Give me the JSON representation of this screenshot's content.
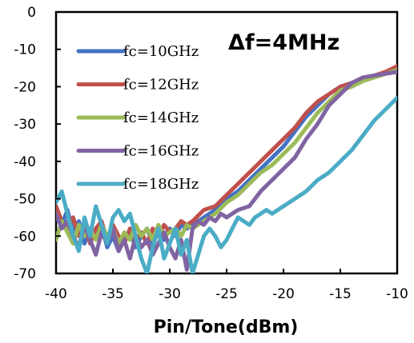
{
  "chart_data": {
    "type": "line",
    "title": "",
    "xlabel": "Pin/Tone(dBm)",
    "ylabel": "",
    "annotation": "Δf=4MHz",
    "xlim": [
      -40,
      -10
    ],
    "ylim": [
      -70,
      0
    ],
    "xticks": [
      -40,
      -35,
      -30,
      -25,
      -20,
      -15,
      -10
    ],
    "yticks": [
      0,
      -10,
      -20,
      -30,
      -40,
      -50,
      -60,
      -70
    ],
    "xtick_labels": [
      "-40",
      "-35",
      "-30",
      "-25",
      "-20",
      "-15",
      "-10"
    ],
    "ytick_labels": [
      "0",
      "-10",
      "-20",
      "-30",
      "-40",
      "-50",
      "-60",
      "-70"
    ],
    "grid": false,
    "legend_position": "top-left",
    "series": [
      {
        "name": "fc=10GHz",
        "color": "#4472c4",
        "points": [
          [
            -40,
            -55
          ],
          [
            -39.5,
            -57
          ],
          [
            -39,
            -53
          ],
          [
            -38.5,
            -59
          ],
          [
            -38,
            -56
          ],
          [
            -37.5,
            -62
          ],
          [
            -37,
            -58
          ],
          [
            -36.5,
            -60
          ],
          [
            -36,
            -57
          ],
          [
            -35.5,
            -63
          ],
          [
            -35,
            -60
          ],
          [
            -34.5,
            -64
          ],
          [
            -34,
            -61
          ],
          [
            -33.5,
            -59
          ],
          [
            -33,
            -63
          ],
          [
            -32.5,
            -60
          ],
          [
            -32,
            -58
          ],
          [
            -31.5,
            -62
          ],
          [
            -31,
            -59
          ],
          [
            -30.5,
            -61
          ],
          [
            -30,
            -58
          ],
          [
            -29.5,
            -60
          ],
          [
            -29,
            -57
          ],
          [
            -28.5,
            -58
          ],
          [
            -28,
            -57
          ],
          [
            -27,
            -55
          ],
          [
            -26,
            -53
          ],
          [
            -25,
            -50
          ],
          [
            -24,
            -48
          ],
          [
            -23,
            -45
          ],
          [
            -22,
            -42
          ],
          [
            -21,
            -39
          ],
          [
            -20,
            -36
          ],
          [
            -19,
            -32
          ],
          [
            -18,
            -28
          ],
          [
            -17,
            -25
          ],
          [
            -16,
            -22
          ],
          [
            -15,
            -20
          ],
          [
            -14,
            -19
          ],
          [
            -13,
            -18
          ],
          [
            -12,
            -17.5
          ],
          [
            -11,
            -16.5
          ],
          [
            -10,
            -16
          ]
        ]
      },
      {
        "name": "fc=12GHz",
        "color": "#c0504d",
        "points": [
          [
            -40,
            -52
          ],
          [
            -39.5,
            -56
          ],
          [
            -39,
            -58
          ],
          [
            -38.5,
            -55
          ],
          [
            -38,
            -60
          ],
          [
            -37.5,
            -57
          ],
          [
            -37,
            -62
          ],
          [
            -36.5,
            -58
          ],
          [
            -36,
            -56
          ],
          [
            -35.5,
            -61
          ],
          [
            -35,
            -57
          ],
          [
            -34.5,
            -60
          ],
          [
            -34,
            -62
          ],
          [
            -33.5,
            -58
          ],
          [
            -33,
            -61
          ],
          [
            -32.5,
            -59
          ],
          [
            -32,
            -62
          ],
          [
            -31.5,
            -58
          ],
          [
            -31,
            -60
          ],
          [
            -30.5,
            -57
          ],
          [
            -30,
            -59
          ],
          [
            -29.5,
            -58
          ],
          [
            -29,
            -56
          ],
          [
            -28.5,
            -57
          ],
          [
            -28,
            -56
          ],
          [
            -27,
            -53
          ],
          [
            -26,
            -52
          ],
          [
            -25,
            -49
          ],
          [
            -24,
            -46
          ],
          [
            -23,
            -43
          ],
          [
            -22,
            -40
          ],
          [
            -21,
            -37
          ],
          [
            -20,
            -34
          ],
          [
            -19,
            -31
          ],
          [
            -18,
            -27
          ],
          [
            -17,
            -24
          ],
          [
            -16,
            -22
          ],
          [
            -15,
            -20
          ],
          [
            -14,
            -19
          ],
          [
            -13,
            -18
          ],
          [
            -12,
            -17
          ],
          [
            -11,
            -16
          ],
          [
            -10,
            -14.5
          ]
        ]
      },
      {
        "name": "fc=14GHz",
        "color": "#9bbb59",
        "points": [
          [
            -40,
            -61
          ],
          [
            -39.5,
            -56
          ],
          [
            -39,
            -59
          ],
          [
            -38.5,
            -62
          ],
          [
            -38,
            -57
          ],
          [
            -37.5,
            -60
          ],
          [
            -37,
            -58
          ],
          [
            -36.5,
            -61
          ],
          [
            -36,
            -57
          ],
          [
            -35.5,
            -60
          ],
          [
            -35,
            -58
          ],
          [
            -34.5,
            -62
          ],
          [
            -34,
            -59
          ],
          [
            -33.5,
            -61
          ],
          [
            -33,
            -57
          ],
          [
            -32.5,
            -60
          ],
          [
            -32,
            -58
          ],
          [
            -31.5,
            -61
          ],
          [
            -31,
            -57
          ],
          [
            -30.5,
            -60
          ],
          [
            -30,
            -59
          ],
          [
            -29.5,
            -58
          ],
          [
            -29,
            -60
          ],
          [
            -28.5,
            -57
          ],
          [
            -28,
            -58
          ],
          [
            -27,
            -56
          ],
          [
            -26,
            -54
          ],
          [
            -25,
            -51
          ],
          [
            -24,
            -49
          ],
          [
            -23,
            -46
          ],
          [
            -22,
            -43
          ],
          [
            -21,
            -41
          ],
          [
            -20,
            -38
          ],
          [
            -19,
            -35
          ],
          [
            -18,
            -31
          ],
          [
            -17,
            -27
          ],
          [
            -16,
            -24
          ],
          [
            -15,
            -21
          ],
          [
            -14,
            -20
          ],
          [
            -13,
            -18.5
          ],
          [
            -12,
            -17.5
          ],
          [
            -11,
            -16.5
          ],
          [
            -10,
            -15.5
          ]
        ]
      },
      {
        "name": "fc=16GHz",
        "color": "#8064a2",
        "points": [
          [
            -40,
            -54
          ],
          [
            -39.5,
            -58
          ],
          [
            -39,
            -56
          ],
          [
            -38.5,
            -60
          ],
          [
            -38,
            -63
          ],
          [
            -37.5,
            -57
          ],
          [
            -37,
            -61
          ],
          [
            -36.5,
            -65
          ],
          [
            -36,
            -59
          ],
          [
            -35.5,
            -62
          ],
          [
            -35,
            -58
          ],
          [
            -34.5,
            -64
          ],
          [
            -34,
            -61
          ],
          [
            -33.5,
            -66
          ],
          [
            -33,
            -60
          ],
          [
            -32.5,
            -63
          ],
          [
            -32,
            -61
          ],
          [
            -31.5,
            -65
          ],
          [
            -31,
            -62
          ],
          [
            -30.5,
            -59
          ],
          [
            -30,
            -63
          ],
          [
            -29.5,
            -66
          ],
          [
            -29,
            -61
          ],
          [
            -28.5,
            -69
          ],
          [
            -28,
            -58
          ],
          [
            -27.5,
            -56
          ],
          [
            -27,
            -57
          ],
          [
            -26.5,
            -55
          ],
          [
            -26,
            -56
          ],
          [
            -25.5,
            -54
          ],
          [
            -25,
            -55
          ],
          [
            -24,
            -53
          ],
          [
            -23,
            -52
          ],
          [
            -22,
            -48
          ],
          [
            -21,
            -45
          ],
          [
            -20,
            -42
          ],
          [
            -19,
            -39
          ],
          [
            -18,
            -34
          ],
          [
            -17,
            -30
          ],
          [
            -16,
            -25
          ],
          [
            -15,
            -22
          ],
          [
            -14,
            -19
          ],
          [
            -13,
            -17.5
          ],
          [
            -12,
            -17
          ],
          [
            -11,
            -16.5
          ],
          [
            -10,
            -16
          ]
        ]
      },
      {
        "name": "fc=18GHz",
        "color": "#4bacc6",
        "points": [
          [
            -40,
            -51
          ],
          [
            -39.5,
            -48
          ],
          [
            -39,
            -54
          ],
          [
            -38.5,
            -60
          ],
          [
            -38,
            -64
          ],
          [
            -37.5,
            -55
          ],
          [
            -37,
            -60
          ],
          [
            -36.5,
            -52
          ],
          [
            -36,
            -57
          ],
          [
            -35.5,
            -62
          ],
          [
            -35,
            -55
          ],
          [
            -34.5,
            -53
          ],
          [
            -34,
            -56
          ],
          [
            -33.5,
            -54
          ],
          [
            -33,
            -60
          ],
          [
            -32.5,
            -66
          ],
          [
            -32,
            -70
          ],
          [
            -31.5,
            -63
          ],
          [
            -31,
            -58
          ],
          [
            -30.5,
            -66
          ],
          [
            -30,
            -62
          ],
          [
            -29.5,
            -58
          ],
          [
            -29,
            -65
          ],
          [
            -28.5,
            -61
          ],
          [
            -28,
            -70
          ],
          [
            -27.5,
            -65
          ],
          [
            -27,
            -60
          ],
          [
            -26.5,
            -58
          ],
          [
            -26,
            -60
          ],
          [
            -25.5,
            -63
          ],
          [
            -25,
            -61
          ],
          [
            -24.5,
            -58
          ],
          [
            -24,
            -55
          ],
          [
            -23.5,
            -56
          ],
          [
            -23,
            -57
          ],
          [
            -22.5,
            -55
          ],
          [
            -22,
            -54
          ],
          [
            -21.5,
            -53
          ],
          [
            -21,
            -54
          ],
          [
            -20.5,
            -53
          ],
          [
            -20,
            -52
          ],
          [
            -19,
            -50
          ],
          [
            -18,
            -48
          ],
          [
            -17,
            -45
          ],
          [
            -16,
            -43
          ],
          [
            -15,
            -40
          ],
          [
            -14,
            -37
          ],
          [
            -13,
            -33
          ],
          [
            -12,
            -29
          ],
          [
            -11,
            -26
          ],
          [
            -10,
            -23
          ]
        ]
      }
    ]
  }
}
